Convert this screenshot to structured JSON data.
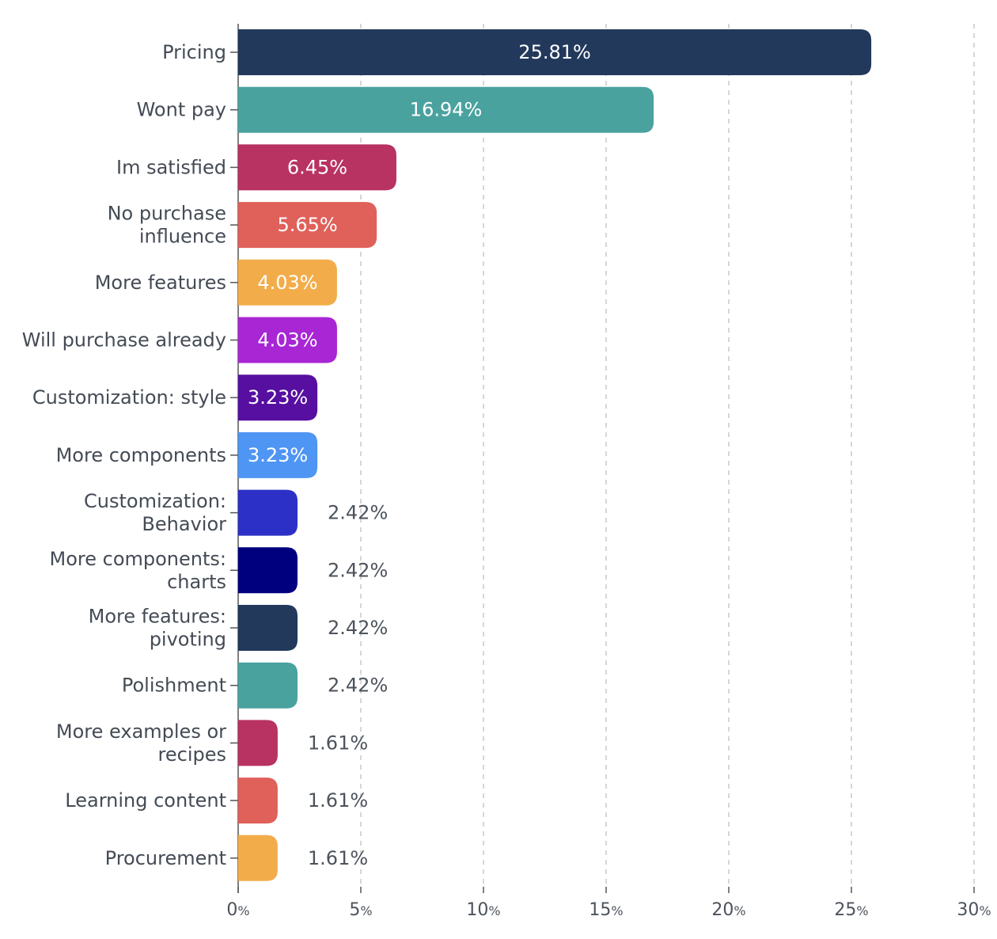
{
  "chart_data": {
    "type": "bar",
    "orientation": "horizontal",
    "categories": [
      [
        "Pricing"
      ],
      [
        "Wont pay"
      ],
      [
        "Im satisfied"
      ],
      [
        "No purchase",
        "influence"
      ],
      [
        "More features"
      ],
      [
        "Will purchase already"
      ],
      [
        "Customization: style"
      ],
      [
        "More components"
      ],
      [
        "Customization:",
        "Behavior"
      ],
      [
        "More components:",
        "charts"
      ],
      [
        "More features:",
        "pivoting"
      ],
      [
        "Polishment"
      ],
      [
        "More examples or",
        "recipes"
      ],
      [
        "Learning content"
      ],
      [
        "Procurement"
      ]
    ],
    "values": [
      25.81,
      16.94,
      6.45,
      5.65,
      4.03,
      4.03,
      3.23,
      3.23,
      2.42,
      2.42,
      2.42,
      2.42,
      1.61,
      1.61,
      1.61
    ],
    "value_labels": [
      "25.81%",
      "16.94%",
      "6.45%",
      "5.65%",
      "4.03%",
      "4.03%",
      "3.23%",
      "3.23%",
      "2.42%",
      "2.42%",
      "2.42%",
      "2.42%",
      "1.61%",
      "1.61%",
      "1.61%"
    ],
    "colors": [
      "#22395c",
      "#4aa29f",
      "#b83262",
      "#e0605a",
      "#f2ad4a",
      "#a826d4",
      "#560fa0",
      "#4f95f3",
      "#2c30c6",
      "#00007f",
      "#22395c",
      "#4aa29f",
      "#b83262",
      "#e0605a",
      "#f2ad4a"
    ],
    "x_ticks": [
      0,
      5,
      10,
      15,
      20,
      25,
      30
    ],
    "x_tick_suffix": "%",
    "xlim": [
      0,
      30
    ],
    "grid": "vertical dashed",
    "title": "",
    "xlabel": "",
    "ylabel": ""
  }
}
